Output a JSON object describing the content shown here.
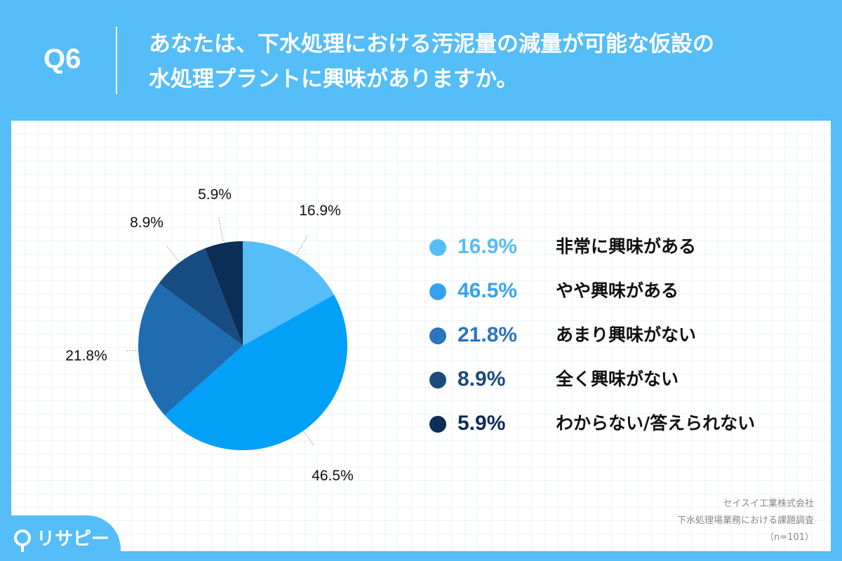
{
  "question": {
    "label": "Q6",
    "title_line1": "あなたは、下水処理における汚泥量の減量が可能な仮設の",
    "title_line2": "水処理プラントに興味がありますか。"
  },
  "chart_data": {
    "type": "pie",
    "title": "",
    "start_angle_deg": 0,
    "direction": "clockwise",
    "slices": [
      {
        "label": "非常に興味がある",
        "value": 16.9,
        "display": "16.9%",
        "color": "#55bdf7"
      },
      {
        "label": "やや興味がある",
        "value": 46.5,
        "display": "46.5%",
        "color": "#03a0f8"
      },
      {
        "label": "あまり興味がない",
        "value": 21.8,
        "display": "21.8%",
        "color": "#1f6db0"
      },
      {
        "label": "全く興味がない",
        "value": 8.9,
        "display": "8.9%",
        "color": "#174c82"
      },
      {
        "label": "わからない/答えられない",
        "value": 5.9,
        "display": "5.9%",
        "color": "#0b2e56"
      }
    ],
    "legend_position": "right"
  },
  "legend": {
    "items": [
      {
        "pct": "16.9%",
        "label": "非常に興味がある",
        "color": "#55bdf7"
      },
      {
        "pct": "46.5%",
        "label": "やや興味がある",
        "color": "#36a2ef"
      },
      {
        "pct": "21.8%",
        "label": "あまり興味がない",
        "color": "#2a74c0"
      },
      {
        "pct": "8.9%",
        "label": "全く興味がない",
        "color": "#1d4a7c"
      },
      {
        "pct": "5.9%",
        "label": "わからない/答えられない",
        "color": "#0d2e57"
      }
    ]
  },
  "footnote": {
    "line1": "セイスイ工業株式会社",
    "line2": "下水処理場業務における課題調査",
    "line3": "（n=101）"
  },
  "logo": {
    "text": "リサピー"
  }
}
